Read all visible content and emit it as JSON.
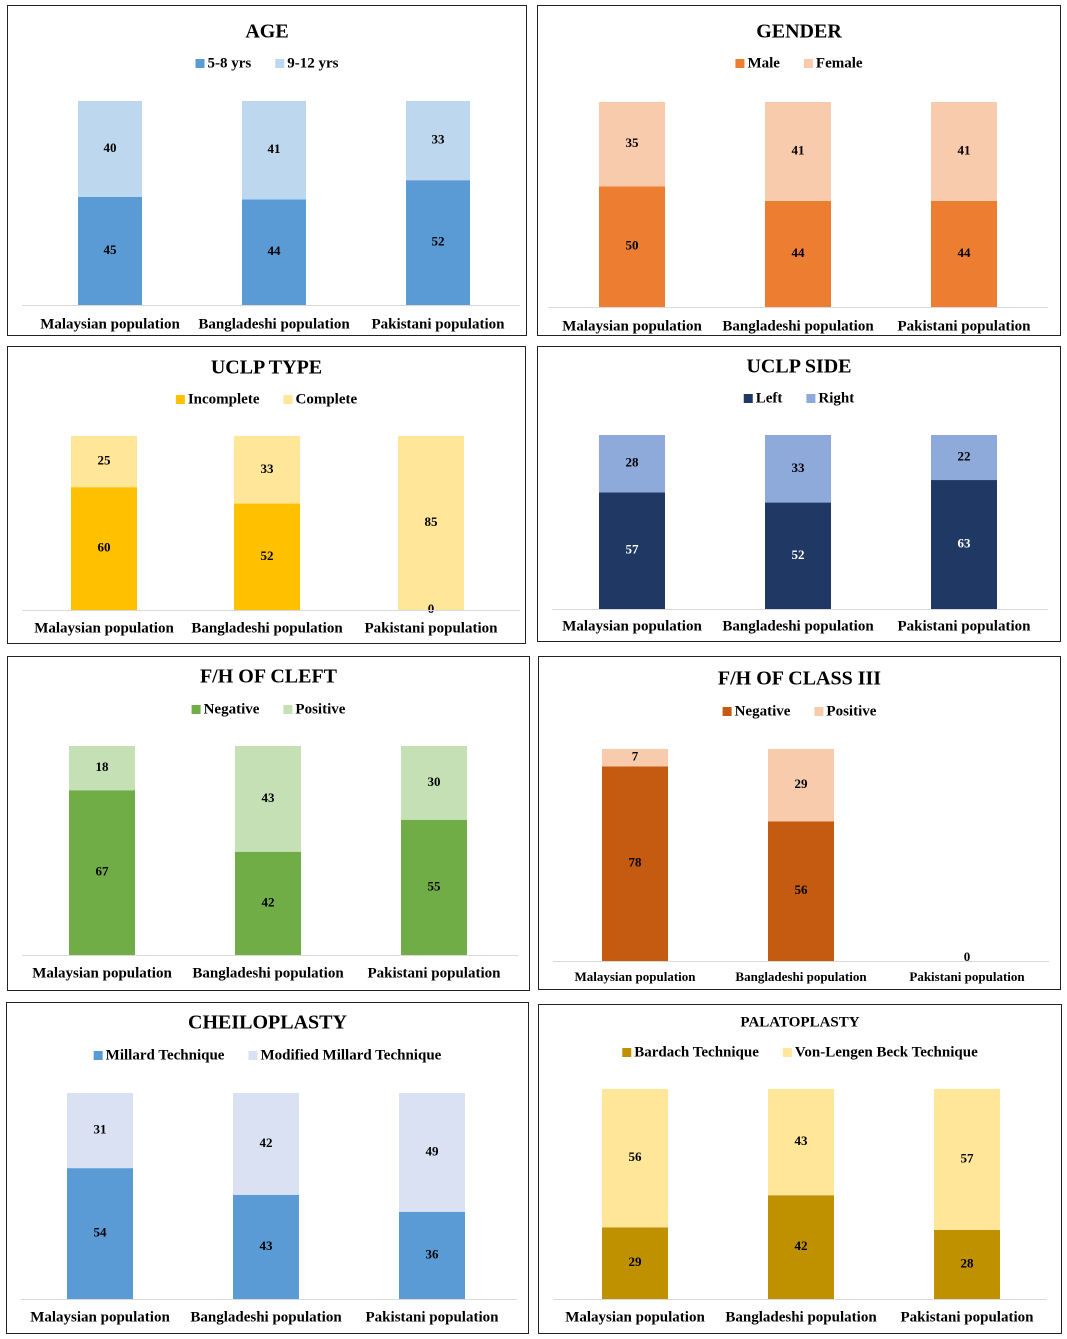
{
  "chart_data": [
    {
      "type": "bar",
      "stacked": true,
      "title": "AGE",
      "categories": [
        "Malaysian population",
        "Bangladeshi population",
        "Pakistani population"
      ],
      "series": [
        {
          "name": "5-8 yrs",
          "values": [
            45,
            44,
            52
          ],
          "color": "#5b9bd5"
        },
        {
          "name": "9-12 yrs",
          "values": [
            40,
            41,
            33
          ],
          "color": "#bdd7ee"
        }
      ],
      "ylim": [
        0,
        85
      ],
      "legend": "top-center",
      "grid": false
    },
    {
      "type": "bar",
      "stacked": true,
      "title": "GENDER",
      "categories": [
        "Malaysian population",
        "Bangladeshi population",
        "Pakistani population"
      ],
      "series": [
        {
          "name": "Male",
          "values": [
            50,
            44,
            44
          ],
          "color": "#ed7d31"
        },
        {
          "name": "Female",
          "values": [
            35,
            41,
            41
          ],
          "color": "#f8cbad"
        }
      ],
      "ylim": [
        0,
        85
      ],
      "legend": "top-center",
      "grid": false
    },
    {
      "type": "bar",
      "stacked": true,
      "title": "UCLP TYPE",
      "categories": [
        "Malaysian population",
        "Bangladeshi population",
        "Pakistani population"
      ],
      "series": [
        {
          "name": "Incomplete",
          "values": [
            60,
            52,
            0
          ],
          "color": "#ffc000"
        },
        {
          "name": "Complete",
          "values": [
            25,
            33,
            85
          ],
          "color": "#ffe699"
        }
      ],
      "ylim": [
        0,
        85
      ],
      "legend": "top-center",
      "grid": false
    },
    {
      "type": "bar",
      "stacked": true,
      "title": "UCLP SIDE",
      "categories": [
        "Malaysian population",
        "Bangladeshi population",
        "Pakistani population"
      ],
      "series": [
        {
          "name": "Left",
          "values": [
            57,
            52,
            63
          ],
          "color": "#1f3864"
        },
        {
          "name": "Right",
          "values": [
            28,
            33,
            22
          ],
          "color": "#8eaadb"
        }
      ],
      "ylim": [
        0,
        85
      ],
      "legend": "top-center",
      "grid": false
    },
    {
      "type": "bar",
      "stacked": true,
      "title": "F/H OF CLEFT",
      "categories": [
        "Malaysian population",
        "Bangladeshi population",
        "Pakistani population"
      ],
      "series": [
        {
          "name": "Negative",
          "values": [
            67,
            42,
            55
          ],
          "color": "#70ad47"
        },
        {
          "name": "Positive",
          "values": [
            18,
            43,
            30
          ],
          "color": "#c5e0b4"
        }
      ],
      "ylim": [
        0,
        85
      ],
      "legend": "top-center",
      "grid": false
    },
    {
      "type": "bar",
      "stacked": true,
      "title": "F/H OF CLASS III",
      "categories": [
        "Malaysian population",
        "Bangladeshi population",
        "Pakistani population"
      ],
      "series": [
        {
          "name": "Negative",
          "values": [
            78,
            56,
            0
          ],
          "color": "#c55a11"
        },
        {
          "name": "Positive",
          "values": [
            7,
            29,
            0
          ],
          "color": "#f8cbad"
        }
      ],
      "ylim": [
        0,
        85
      ],
      "legend": "top-center",
      "grid": false
    },
    {
      "type": "bar",
      "stacked": true,
      "title": "CHEILOPLASTY",
      "categories": [
        "Malaysian population",
        "Bangladeshi population",
        "Pakistani population"
      ],
      "series": [
        {
          "name": "Millard Technique",
          "values": [
            54,
            43,
            36
          ],
          "color": "#5b9bd5"
        },
        {
          "name": "Modified Millard Technique",
          "values": [
            31,
            42,
            49
          ],
          "color": "#dae1f3"
        }
      ],
      "ylim": [
        0,
        85
      ],
      "legend": "top-center",
      "grid": false
    },
    {
      "type": "bar",
      "stacked": true,
      "title": "PALATOPLASTY",
      "categories": [
        "Malaysian population",
        "Bangladeshi population",
        "Pakistani population"
      ],
      "series": [
        {
          "name": "Bardach Technique",
          "values": [
            29,
            42,
            28
          ],
          "color": "#bf9000"
        },
        {
          "name": "Von-Lengen Beck Technique",
          "values": [
            56,
            43,
            57
          ],
          "color": "#ffe699"
        }
      ],
      "ylim": [
        0,
        85
      ],
      "legend": "top-center",
      "grid": false
    }
  ]
}
